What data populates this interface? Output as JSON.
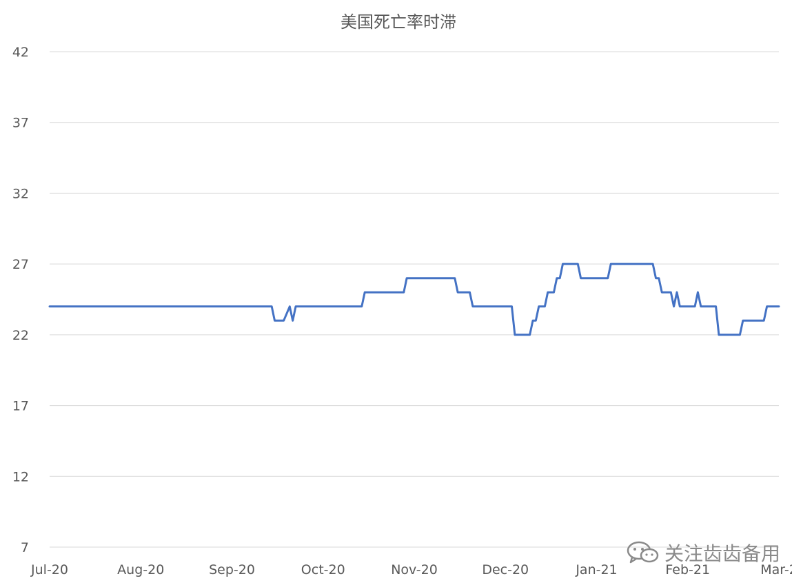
{
  "chart_data": {
    "type": "line",
    "title": "美国死亡率时滞",
    "xlabel": "",
    "ylabel": "",
    "x_tick_labels": [
      "Jul-20",
      "Aug-20",
      "Sep-20",
      "Oct-20",
      "Nov-20",
      "Dec-20",
      "Jan-21",
      "Feb-21",
      "Mar-2"
    ],
    "y_tick_labels": [
      "42",
      "37",
      "32",
      "27",
      "22",
      "17",
      "12",
      "7"
    ],
    "ylim": [
      7,
      42
    ],
    "xlim": [
      "2020-07-01",
      "2021-03-01"
    ],
    "grid": "horizontal",
    "legend": "none",
    "series": [
      {
        "color": "#4472c4",
        "points": [
          [
            "2020-07-01",
            24
          ],
          [
            "2020-09-13",
            24
          ],
          [
            "2020-09-14",
            23
          ],
          [
            "2020-09-17",
            23
          ],
          [
            "2020-09-19",
            24
          ],
          [
            "2020-09-20",
            23
          ],
          [
            "2020-09-21",
            24
          ],
          [
            "2020-10-13",
            24
          ],
          [
            "2020-10-14",
            25
          ],
          [
            "2020-10-27",
            25
          ],
          [
            "2020-10-28",
            26
          ],
          [
            "2020-11-13",
            26
          ],
          [
            "2020-11-14",
            25
          ],
          [
            "2020-11-18",
            25
          ],
          [
            "2020-11-19",
            24
          ],
          [
            "2020-12-02",
            24
          ],
          [
            "2020-12-03",
            22
          ],
          [
            "2020-12-08",
            22
          ],
          [
            "2020-12-09",
            23
          ],
          [
            "2020-12-10",
            23
          ],
          [
            "2020-12-11",
            24
          ],
          [
            "2020-12-13",
            24
          ],
          [
            "2020-12-14",
            25
          ],
          [
            "2020-12-16",
            25
          ],
          [
            "2020-12-17",
            26
          ],
          [
            "2020-12-18",
            26
          ],
          [
            "2020-12-19",
            27
          ],
          [
            "2020-12-24",
            27
          ],
          [
            "2020-12-25",
            26
          ],
          [
            "2021-01-03",
            26
          ],
          [
            "2021-01-04",
            27
          ],
          [
            "2021-01-18",
            27
          ],
          [
            "2021-01-19",
            26
          ],
          [
            "2021-01-20",
            26
          ],
          [
            "2021-01-21",
            25
          ],
          [
            "2021-01-24",
            25
          ],
          [
            "2021-01-25",
            24
          ],
          [
            "2021-01-26",
            25
          ],
          [
            "2021-01-27",
            24
          ],
          [
            "2021-02-01",
            24
          ],
          [
            "2021-02-02",
            25
          ],
          [
            "2021-02-03",
            24
          ],
          [
            "2021-02-08",
            24
          ],
          [
            "2021-02-09",
            22
          ],
          [
            "2021-02-16",
            22
          ],
          [
            "2021-02-17",
            23
          ],
          [
            "2021-02-24",
            23
          ],
          [
            "2021-02-25",
            24
          ],
          [
            "2021-03-01",
            24
          ]
        ]
      }
    ]
  },
  "watermark": {
    "text": "关注齿齿备用"
  }
}
